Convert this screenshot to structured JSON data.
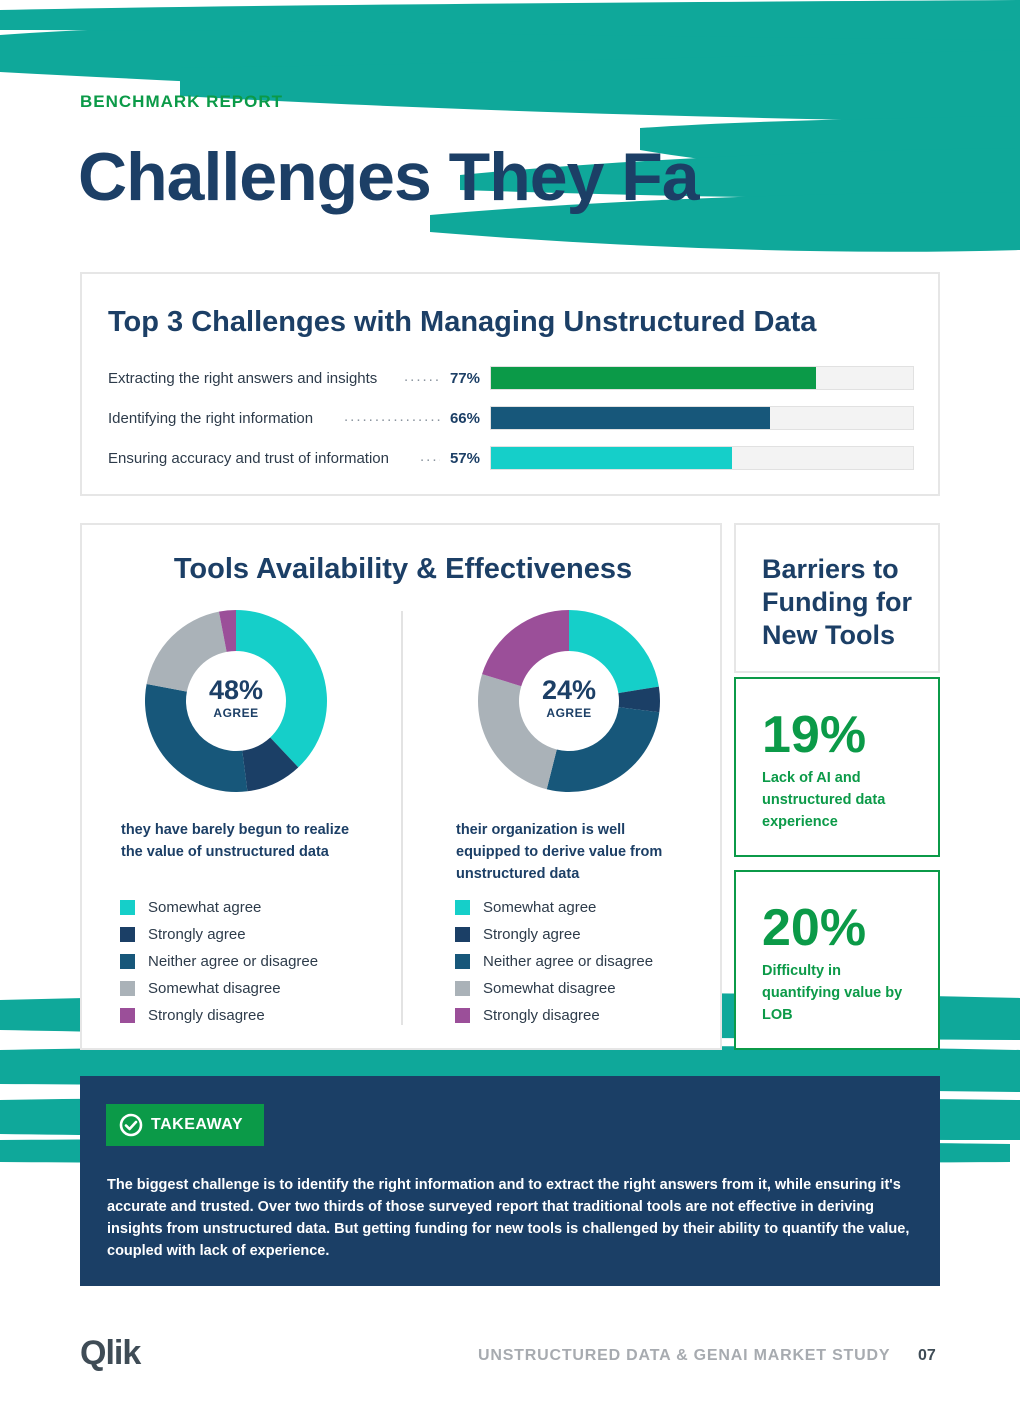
{
  "header": {
    "eyebrow": "BENCHMARK REPORT",
    "title": "Challenges They Fa"
  },
  "challenges": {
    "title": "Top 3 Challenges with Managing Unstructured Data",
    "items": [
      {
        "label": "Extracting the right answers and insights",
        "pct_label": "77%",
        "value": 77,
        "color": "#0b9a48"
      },
      {
        "label": "Identifying the right information",
        "pct_label": "66%",
        "value": 66,
        "color": "#17577a"
      },
      {
        "label": "Ensuring accuracy and trust of information",
        "pct_label": "57%",
        "value": 57,
        "color": "#15cfc9"
      }
    ]
  },
  "tools": {
    "title": "Tools Availability & Effectiveness",
    "left": {
      "pct": "48%",
      "sub": "AGREE",
      "description": "they have barely begun to realize the value of unstructured data"
    },
    "right": {
      "pct": "24%",
      "sub": "AGREE",
      "description": "their organization is well equipped to derive value from unstructured data"
    },
    "legend": [
      "Somewhat agree",
      "Strongly agree",
      "Neither agree or disagree",
      "Somewhat disagree",
      "Strongly disagree"
    ]
  },
  "chart_data": [
    {
      "type": "pie",
      "title": "Tools Availability & Effectiveness — value realization",
      "center_label": "48% AGREE",
      "categories": [
        "Somewhat agree",
        "Strongly agree",
        "Neither agree or disagree",
        "Somewhat disagree",
        "Strongly disagree"
      ],
      "values": [
        38,
        10,
        30,
        19,
        3
      ],
      "colors": [
        "#15cfc9",
        "#1b3f66",
        "#17577a",
        "#aab2b8",
        "#9b4f99"
      ]
    },
    {
      "type": "pie",
      "title": "Tools Availability & Effectiveness — equipped to derive value",
      "center_label": "24% AGREE",
      "categories": [
        "Somewhat agree",
        "Strongly agree",
        "Neither agree or disagree",
        "Somewhat disagree",
        "Strongly disagree"
      ],
      "values": [
        20,
        4,
        24,
        23,
        18
      ],
      "colors": [
        "#15cfc9",
        "#1b3f66",
        "#17577a",
        "#aab2b8",
        "#9b4f99"
      ]
    }
  ],
  "barriers": {
    "title": "Barriers to Funding for New Tools",
    "stats": [
      {
        "value": "19%",
        "text": "Lack of AI and unstructured data experience"
      },
      {
        "value": "20%",
        "text": "Difficulty in quantifying value by LOB"
      }
    ]
  },
  "takeaway": {
    "label": "TAKEAWAY",
    "text": "The biggest challenge is to identify the right information and to extract the right answers from it, while ensuring it's accurate and trusted. Over two thirds of those surveyed report that traditional tools are not effective in deriving insights from unstructured data. But getting funding for new tools is challenged by their ability to quantify the value, coupled with lack of experience."
  },
  "footer": {
    "logo": "Qlik",
    "study": "UNSTRUCTURED DATA & GENAI MARKET STUDY",
    "page": "07"
  },
  "colors": {
    "teal": "#0fa89a",
    "green": "#0b9a48",
    "navy": "#1b3f66"
  }
}
